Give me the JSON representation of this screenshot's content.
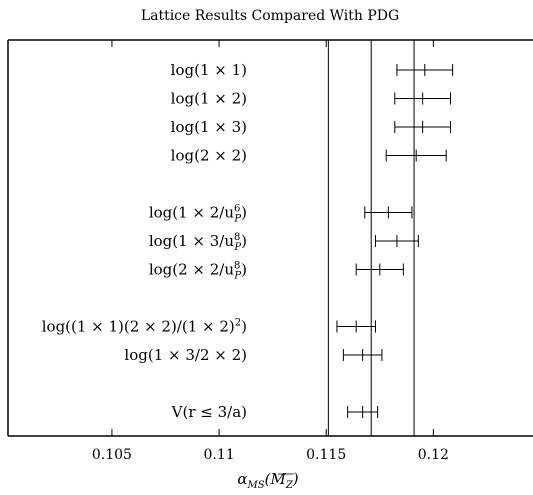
{
  "chart_data": {
    "type": "scatter",
    "title": "Lattice Results Compared With PDG",
    "xlabel": "α_MS(M_Z)",
    "xlim": [
      0.10015,
      0.12465
    ],
    "xticks": [
      0.105,
      0.11,
      0.115,
      0.12
    ],
    "xtick_labels": [
      "0.105",
      "0.11",
      "0.115",
      "0.12"
    ],
    "vertical_lines": [
      0.1151,
      0.1171,
      0.1191
    ],
    "rows": [
      {
        "label": "log(1 × 1)",
        "value": 0.1196,
        "lo": 0.1183,
        "hi": 0.1209,
        "slot": 0
      },
      {
        "label": "log(1 × 2)",
        "value": 0.1195,
        "lo": 0.1182,
        "hi": 0.1208,
        "slot": 1
      },
      {
        "label": "log(1 × 3)",
        "value": 0.1195,
        "lo": 0.1182,
        "hi": 0.1208,
        "slot": 2
      },
      {
        "label": "log(2 × 2)",
        "value": 0.1192,
        "lo": 0.1178,
        "hi": 0.1206,
        "slot": 3
      },
      {
        "label": "log(1 × 2/u_P^6)",
        "value": 0.1179,
        "lo": 0.1168,
        "hi": 0.119,
        "slot": 5
      },
      {
        "label": "log(1 × 3/u_P^8)",
        "value": 0.1183,
        "lo": 0.1173,
        "hi": 0.1193,
        "slot": 6
      },
      {
        "label": "log(2 × 2/u_P^8)",
        "value": 0.1175,
        "lo": 0.1164,
        "hi": 0.1186,
        "slot": 7
      },
      {
        "label": "log((1 × 1)(2 × 2)/(1 × 2)^2)",
        "value": 0.1164,
        "lo": 0.1155,
        "hi": 0.1173,
        "slot": 9
      },
      {
        "label": "log(1 × 3/2 × 2)",
        "value": 0.1167,
        "lo": 0.1158,
        "hi": 0.1176,
        "slot": 10
      },
      {
        "label": "V(r ≤ 3/a)",
        "value": 0.1167,
        "lo": 0.116,
        "hi": 0.1174,
        "slot": 12
      }
    ],
    "grid": false,
    "legend": "none"
  }
}
